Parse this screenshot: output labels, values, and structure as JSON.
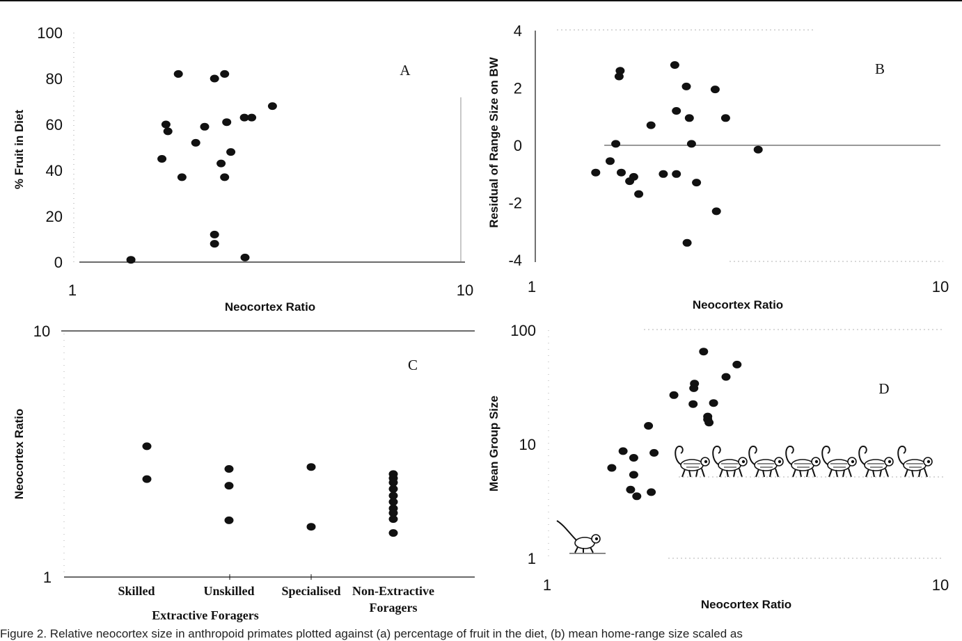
{
  "caption": "Figure 2. Relative neocortex size in anthropoid primates plotted against (a) percentage of fruit in the diet, (b) mean home-range size scaled as",
  "chart_data": [
    {
      "id": "A",
      "type": "scatter",
      "panel_label": "A",
      "xlabel": "Neocortex Ratio",
      "ylabel": "% Fruit in Diet",
      "x_scale": "log",
      "xlim": [
        1,
        10
      ],
      "ylim": [
        0,
        100
      ],
      "x_tick_labels": [
        "1",
        "10"
      ],
      "y_ticks": [
        0,
        20,
        40,
        60,
        80,
        100
      ],
      "y_tick_labels": [
        "0",
        "20",
        "40",
        "60",
        "80",
        "100"
      ],
      "points": [
        {
          "x": 1.4,
          "y": 1
        },
        {
          "x": 1.85,
          "y": 82
        },
        {
          "x": 1.68,
          "y": 45
        },
        {
          "x": 1.72,
          "y": 60
        },
        {
          "x": 1.74,
          "y": 57
        },
        {
          "x": 1.89,
          "y": 37
        },
        {
          "x": 2.05,
          "y": 52
        },
        {
          "x": 2.16,
          "y": 59
        },
        {
          "x": 2.29,
          "y": 80
        },
        {
          "x": 2.43,
          "y": 82
        },
        {
          "x": 2.38,
          "y": 43
        },
        {
          "x": 2.43,
          "y": 37
        },
        {
          "x": 2.46,
          "y": 61
        },
        {
          "x": 2.52,
          "y": 48
        },
        {
          "x": 2.73,
          "y": 63
        },
        {
          "x": 2.85,
          "y": 63
        },
        {
          "x": 3.22,
          "y": 68
        },
        {
          "x": 2.29,
          "y": 12
        },
        {
          "x": 2.29,
          "y": 8
        },
        {
          "x": 2.74,
          "y": 2
        }
      ]
    },
    {
      "id": "B",
      "type": "scatter",
      "panel_label": "B",
      "xlabel": "Neocortex Ratio",
      "ylabel": "Residual of Range Size on BW",
      "x_scale": "log",
      "xlim": [
        1,
        10
      ],
      "ylim": [
        -4,
        4
      ],
      "x_tick_labels": [
        "1",
        "10"
      ],
      "y_ticks": [
        -4,
        -2,
        0,
        2,
        4
      ],
      "y_tick_labels": [
        "-4",
        "-2",
        "0",
        "2",
        "4"
      ],
      "zero_line": {
        "from": 1.48,
        "to": 10
      },
      "points": [
        {
          "x": 1.41,
          "y": -0.95
        },
        {
          "x": 1.53,
          "y": -0.55
        },
        {
          "x": 1.58,
          "y": 0.05
        },
        {
          "x": 1.63,
          "y": -0.95
        },
        {
          "x": 1.71,
          "y": -1.25
        },
        {
          "x": 1.75,
          "y": -1.1
        },
        {
          "x": 1.8,
          "y": -1.7
        },
        {
          "x": 1.61,
          "y": 2.4
        },
        {
          "x": 1.62,
          "y": 2.6
        },
        {
          "x": 1.93,
          "y": 0.7
        },
        {
          "x": 2.07,
          "y": -1.0
        },
        {
          "x": 2.23,
          "y": -1.0
        },
        {
          "x": 2.21,
          "y": 2.8
        },
        {
          "x": 2.23,
          "y": 1.2
        },
        {
          "x": 2.36,
          "y": 2.05
        },
        {
          "x": 2.4,
          "y": 0.95
        },
        {
          "x": 2.43,
          "y": 0.05
        },
        {
          "x": 2.5,
          "y": -1.3
        },
        {
          "x": 2.78,
          "y": 1.95
        },
        {
          "x": 2.95,
          "y": 0.95
        },
        {
          "x": 2.8,
          "y": -2.3
        },
        {
          "x": 2.37,
          "y": -3.4
        },
        {
          "x": 3.55,
          "y": -0.15
        }
      ]
    },
    {
      "id": "C",
      "type": "scatter",
      "panel_label": "C",
      "ylabel": "Neocortex Ratio",
      "xlabel": "Extractive Foragers",
      "y_scale": "log",
      "ylim": [
        1,
        10
      ],
      "y_tick_labels": [
        "1",
        "10"
      ],
      "categories": [
        "Skilled",
        "Unskilled",
        "Specialised",
        "Non-Extractive Foragers"
      ],
      "category_lines": [
        [
          "Skilled"
        ],
        [
          "Unskilled"
        ],
        [
          "Specialised"
        ],
        [
          "Non-Extractive",
          "Foragers"
        ]
      ],
      "points": [
        {
          "category": "Skilled",
          "y": 3.4
        },
        {
          "category": "Skilled",
          "y": 2.5
        },
        {
          "category": "Unskilled",
          "y": 2.75
        },
        {
          "category": "Unskilled",
          "y": 2.35
        },
        {
          "category": "Unskilled",
          "y": 1.7
        },
        {
          "category": "Specialised",
          "y": 2.8
        },
        {
          "category": "Specialised",
          "y": 1.6
        },
        {
          "category": "Non-Extractive Foragers",
          "y": 2.62
        },
        {
          "category": "Non-Extractive Foragers",
          "y": 2.52
        },
        {
          "category": "Non-Extractive Foragers",
          "y": 2.42
        },
        {
          "category": "Non-Extractive Foragers",
          "y": 2.28
        },
        {
          "category": "Non-Extractive Foragers",
          "y": 2.14
        },
        {
          "category": "Non-Extractive Foragers",
          "y": 2.02
        },
        {
          "category": "Non-Extractive Foragers",
          "y": 1.9
        },
        {
          "category": "Non-Extractive Foragers",
          "y": 1.82
        },
        {
          "category": "Non-Extractive Foragers",
          "y": 1.72
        },
        {
          "category": "Non-Extractive Foragers",
          "y": 1.51
        }
      ]
    },
    {
      "id": "D",
      "type": "scatter",
      "panel_label": "D",
      "xlabel": "Neocortex Ratio",
      "ylabel": "Mean Group Size",
      "x_scale": "log",
      "y_scale": "log",
      "xlim": [
        1,
        10
      ],
      "ylim": [
        1,
        100
      ],
      "x_tick_labels": [
        "1",
        "10"
      ],
      "y_ticks": [
        1,
        10,
        100
      ],
      "y_tick_labels": [
        "1",
        "10",
        "100"
      ],
      "points": [
        {
          "x": 1.46,
          "y": 6.2
        },
        {
          "x": 1.56,
          "y": 8.7
        },
        {
          "x": 1.63,
          "y": 4.0
        },
        {
          "x": 1.66,
          "y": 5.4
        },
        {
          "x": 1.66,
          "y": 7.6
        },
        {
          "x": 1.69,
          "y": 3.5
        },
        {
          "x": 1.84,
          "y": 3.8
        },
        {
          "x": 1.81,
          "y": 14.5
        },
        {
          "x": 1.87,
          "y": 8.4
        },
        {
          "x": 2.1,
          "y": 27.0
        },
        {
          "x": 2.37,
          "y": 34.0
        },
        {
          "x": 2.36,
          "y": 31.0
        },
        {
          "x": 2.35,
          "y": 22.5
        },
        {
          "x": 2.5,
          "y": 65.0
        },
        {
          "x": 2.56,
          "y": 17.5
        },
        {
          "x": 2.56,
          "y": 16.5
        },
        {
          "x": 2.58,
          "y": 15.5
        },
        {
          "x": 2.65,
          "y": 23.0
        },
        {
          "x": 2.85,
          "y": 39.0
        },
        {
          "x": 3.04,
          "y": 50.0
        }
      ],
      "illustrations": [
        "monkey",
        "monkey",
        "monkey",
        "monkey",
        "monkey",
        "monkey",
        "monkey",
        "prosimian"
      ]
    }
  ]
}
